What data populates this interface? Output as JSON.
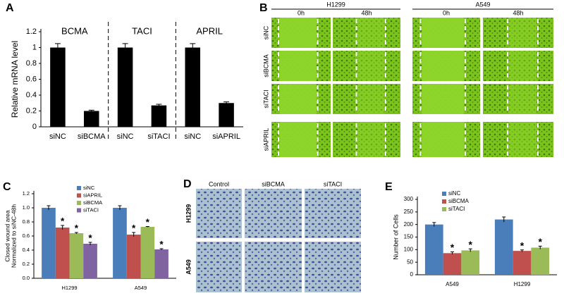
{
  "chart_data": [
    {
      "panel": "A",
      "type": "bar",
      "ylabel": "Relative mRNA level",
      "categories": [
        "siNC",
        "siBCMA",
        "siNC",
        "siTACI",
        "siNC",
        "siAPRIL"
      ],
      "groups": [
        "BCMA",
        "TACI",
        "APRIL"
      ],
      "values": [
        1.0,
        0.2,
        1.0,
        0.27,
        1.0,
        0.3
      ],
      "errors": [
        0.05,
        0.01,
        0.05,
        0.015,
        0.05,
        0.015
      ],
      "color": "#000000",
      "ylim": [
        0,
        1.2
      ],
      "yticks": [
        0,
        0.2,
        0.4,
        0.6,
        0.8,
        1,
        1.2
      ],
      "grid": false
    },
    {
      "panel": "C",
      "type": "bar",
      "ylabel": [
        "Closed wound area",
        "Normalized to siNC-48h"
      ],
      "categories": [
        "H1299",
        "A549"
      ],
      "series": [
        {
          "name": "siNC",
          "color": "#4a7ebb",
          "values": [
            1.0,
            1.0
          ],
          "errors": [
            0.03,
            0.03
          ]
        },
        {
          "name": "siAPRIL",
          "color": "#c0504d",
          "values": [
            0.72,
            0.62
          ],
          "errors": [
            0.03,
            0.03
          ],
          "significance": "*"
        },
        {
          "name": "siBCMA",
          "color": "#9bbb59",
          "values": [
            0.64,
            0.73
          ],
          "errors": [
            0.01,
            0.005
          ],
          "significance": "*"
        },
        {
          "name": "siTACI",
          "color": "#8064a2",
          "values": [
            0.49,
            0.41
          ],
          "errors": [
            0.02,
            0.01
          ],
          "significance": "*"
        }
      ],
      "ylim": [
        0,
        1.2
      ],
      "yticks": [
        {
          "value": 0,
          "label": "0.0"
        },
        0.2,
        0.4,
        0.6,
        0.8,
        {
          "value": 1,
          "label": "1.0"
        },
        1.2
      ],
      "grid": false,
      "legend": "upper center"
    },
    {
      "panel": "E",
      "type": "bar",
      "ylabel": "Number of Cells",
      "categories": [
        "A549",
        "H1299"
      ],
      "series": [
        {
          "name": "siNC",
          "color": "#4a7ebb",
          "values": [
            200,
            220
          ],
          "errors": [
            8,
            10
          ]
        },
        {
          "name": "siBCMA",
          "color": "#c0504d",
          "values": [
            86,
            95
          ],
          "errors": [
            5,
            4
          ],
          "significance": "*"
        },
        {
          "name": "siTACI",
          "color": "#9bbb59",
          "values": [
            97,
            108
          ],
          "errors": [
            6,
            6
          ],
          "significance": "*"
        }
      ],
      "ylim": [
        0,
        300
      ],
      "yticks": [
        0,
        50,
        100,
        150,
        200,
        250,
        300
      ],
      "grid": false,
      "legend": "upper left"
    }
  ],
  "wound_images": {
    "panel": "B",
    "cell_lines": [
      "H1299",
      "A549"
    ],
    "times": [
      "0h",
      "48h"
    ],
    "rows": [
      "siNC",
      "siBCMA",
      "siTACI",
      "siAPRIL"
    ]
  },
  "transwell_images": {
    "panel": "D",
    "columns": [
      "Control",
      "siBCMA",
      "siTACI"
    ],
    "rows": [
      "H1299",
      "A549"
    ]
  }
}
